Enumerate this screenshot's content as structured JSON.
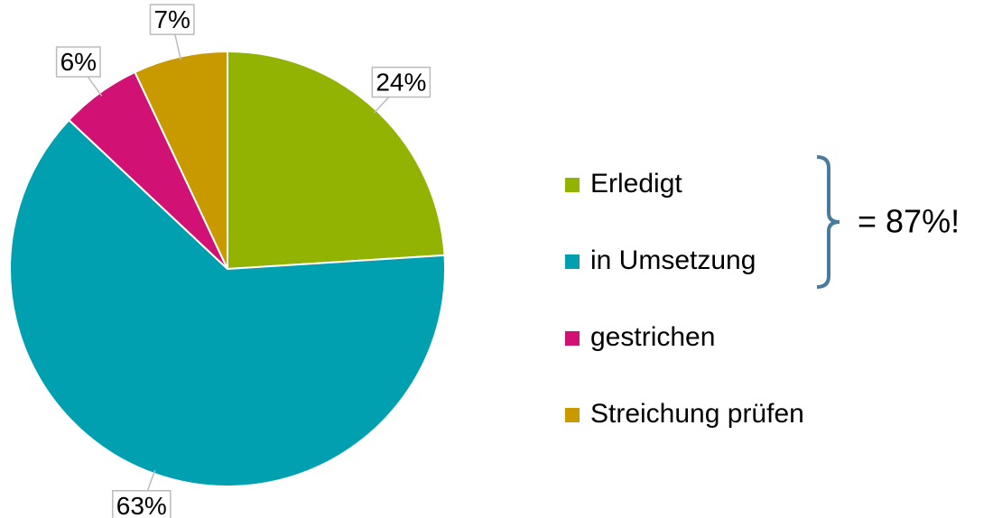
{
  "chart_data": {
    "type": "pie",
    "categories": [
      "Erledigt",
      "in Umsetzung",
      "gestrichen",
      "Streichung prüfen"
    ],
    "values": [
      24,
      63,
      6,
      7
    ],
    "value_labels": [
      "24%",
      "63%",
      "6%",
      "7%"
    ],
    "colors": [
      "#92b301",
      "#00a0b0",
      "#d11274",
      "#c99a00"
    ],
    "annotation": "= 87%!"
  }
}
